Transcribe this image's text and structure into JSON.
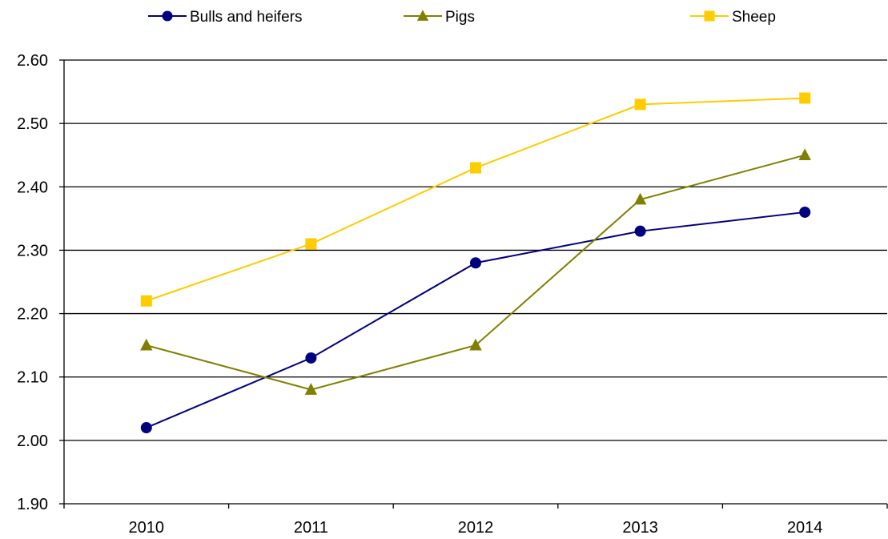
{
  "chart_data": {
    "type": "line",
    "title": "",
    "xlabel": "",
    "ylabel": "",
    "categories": [
      "2010",
      "2011",
      "2012",
      "2013",
      "2014"
    ],
    "ylim": [
      1.9,
      2.6
    ],
    "yticks": [
      "1.90",
      "2.00",
      "2.10",
      "2.20",
      "2.30",
      "2.40",
      "2.50",
      "2.60"
    ],
    "grid": "horizontal",
    "legend_position": "top",
    "series": [
      {
        "name": "Bulls and heifers",
        "color": "#000080",
        "marker": "circle",
        "values": [
          2.02,
          2.13,
          2.28,
          2.33,
          2.36
        ]
      },
      {
        "name": "Pigs",
        "color": "#808000",
        "marker": "triangle",
        "values": [
          2.15,
          2.08,
          2.15,
          2.38,
          2.45
        ]
      },
      {
        "name": "Sheep",
        "color": "#FFCC00",
        "marker": "square",
        "values": [
          2.22,
          2.31,
          2.43,
          2.53,
          2.54
        ]
      }
    ]
  }
}
